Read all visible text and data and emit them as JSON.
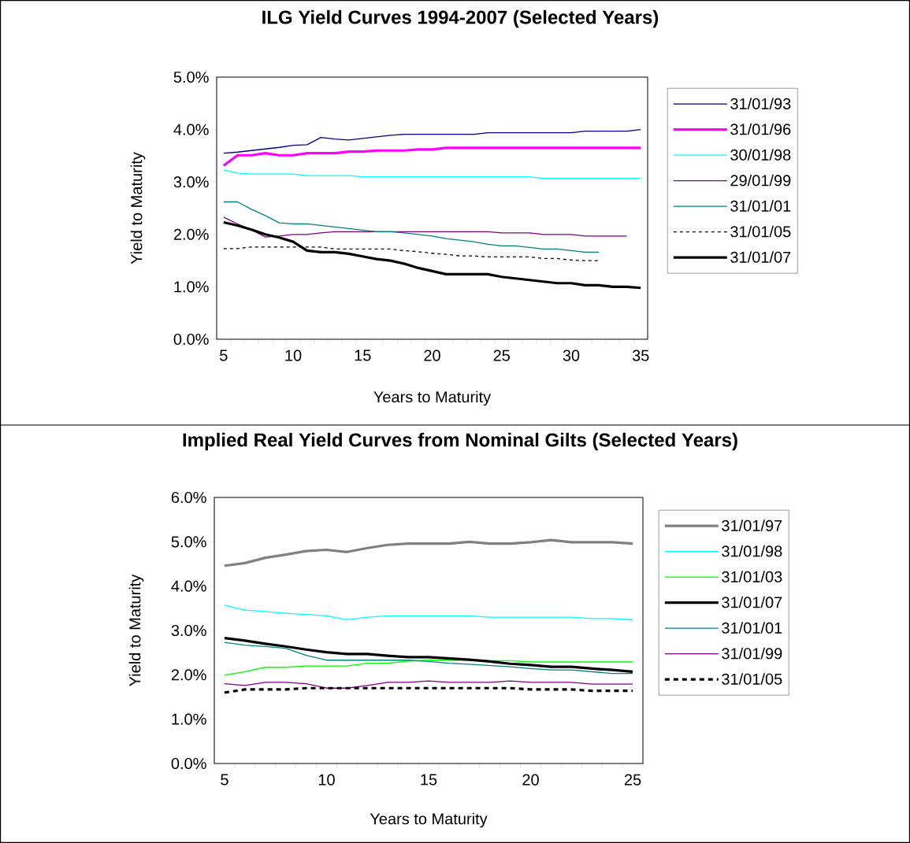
{
  "chart_data": [
    {
      "type": "line",
      "title": "ILG Yield Curves 1994-2007 (Selected Years)",
      "xlabel": "Years to Maturity",
      "ylabel": "Yield to Maturity",
      "x": [
        5,
        6,
        7,
        8,
        9,
        10,
        11,
        12,
        13,
        14,
        15,
        16,
        17,
        18,
        19,
        20,
        21,
        22,
        23,
        24,
        25,
        26,
        27,
        28,
        29,
        30,
        31,
        32,
        33,
        34,
        35
      ],
      "xlim": [
        4.5,
        35.5
      ],
      "xticks": [
        5,
        10,
        15,
        20,
        25,
        30,
        35
      ],
      "ylim": [
        0,
        5
      ],
      "yticks": [
        {
          "value": 0,
          "label": "0.0%"
        },
        {
          "value": 1,
          "label": "1.0%"
        },
        {
          "value": 2,
          "label": "2.0%"
        },
        {
          "value": 3,
          "label": "3.0%"
        },
        {
          "value": 4,
          "label": "4.0%"
        },
        {
          "value": 5,
          "label": "5.0%"
        }
      ],
      "legend": "right",
      "grid": false,
      "series": [
        {
          "name": "31/01/93",
          "color": "#000080",
          "values": [
            3.55,
            3.57,
            3.6,
            3.63,
            3.66,
            3.7,
            3.71,
            3.85,
            3.82,
            3.8,
            3.83,
            3.86,
            3.89,
            3.91,
            3.91,
            3.91,
            3.91,
            3.91,
            3.91,
            3.94,
            3.94,
            3.94,
            3.94,
            3.94,
            3.94,
            3.94,
            3.97,
            3.97,
            3.97,
            3.97,
            4.0
          ]
        },
        {
          "name": "31/01/96",
          "color": "#ff00ff",
          "values": [
            3.31,
            3.51,
            3.51,
            3.55,
            3.51,
            3.51,
            3.55,
            3.55,
            3.55,
            3.58,
            3.58,
            3.6,
            3.6,
            3.6,
            3.62,
            3.62,
            3.65,
            3.65,
            3.65,
            3.65,
            3.65,
            3.65,
            3.65,
            3.65,
            3.65,
            3.65,
            3.65,
            3.65,
            3.65,
            3.65,
            3.65
          ]
        },
        {
          "name": "30/01/98",
          "color": "#00ffff",
          "values": [
            3.23,
            3.17,
            3.15,
            3.15,
            3.15,
            3.15,
            3.12,
            3.12,
            3.12,
            3.12,
            3.1,
            3.1,
            3.1,
            3.1,
            3.1,
            3.1,
            3.1,
            3.1,
            3.1,
            3.1,
            3.1,
            3.1,
            3.1,
            3.07,
            3.07,
            3.07,
            3.07,
            3.07,
            3.07,
            3.07,
            3.07
          ]
        },
        {
          "name": "29/01/99",
          "color": "#800080",
          "values": [
            2.33,
            2.2,
            2.09,
            1.95,
            1.97,
            2.0,
            2.0,
            2.03,
            2.05,
            2.05,
            2.05,
            2.05,
            2.05,
            2.05,
            2.05,
            2.05,
            2.05,
            2.05,
            2.05,
            2.05,
            2.03,
            2.03,
            2.03,
            2.0,
            2.0,
            2.0,
            1.97,
            1.97,
            1.97,
            1.97,
            null
          ]
        },
        {
          "name": "31/01/01",
          "color": "#008080",
          "values": [
            2.62,
            2.62,
            2.48,
            2.36,
            2.22,
            2.2,
            2.2,
            2.17,
            2.14,
            2.11,
            2.08,
            2.05,
            2.05,
            2.03,
            2.0,
            1.97,
            1.92,
            1.89,
            1.86,
            1.81,
            1.78,
            1.78,
            1.75,
            1.72,
            1.72,
            1.69,
            1.66,
            1.66,
            null,
            null,
            null
          ]
        },
        {
          "name": "31/01/05",
          "color": "#000000",
          "line_style": "dotted",
          "values": [
            1.73,
            1.73,
            1.76,
            1.76,
            1.76,
            1.76,
            1.76,
            1.76,
            1.72,
            1.72,
            1.72,
            1.72,
            1.72,
            1.69,
            1.67,
            1.64,
            1.62,
            1.59,
            1.59,
            1.57,
            1.57,
            1.57,
            1.57,
            1.54,
            1.54,
            1.51,
            1.5,
            1.5,
            null,
            null,
            null
          ]
        },
        {
          "name": "31/01/07",
          "color": "#000000",
          "values": [
            2.23,
            2.17,
            2.09,
            2.0,
            1.94,
            1.86,
            1.69,
            1.66,
            1.66,
            1.63,
            1.58,
            1.53,
            1.5,
            1.44,
            1.36,
            1.3,
            1.24,
            1.24,
            1.24,
            1.24,
            1.19,
            1.16,
            1.13,
            1.1,
            1.07,
            1.07,
            1.03,
            1.03,
            1.0,
            1.0,
            0.98
          ]
        }
      ]
    },
    {
      "type": "line",
      "title": "Implied Real Yield Curves from Nominal Gilts (Selected Years)",
      "xlabel": "Years to Maturity",
      "ylabel": "Yield to Maturity",
      "x": [
        5,
        6,
        7,
        8,
        9,
        10,
        11,
        12,
        13,
        14,
        15,
        16,
        17,
        18,
        19,
        20,
        21,
        22,
        23,
        24,
        25
      ],
      "xlim": [
        4.5,
        25.5
      ],
      "xticks": [
        5,
        10,
        15,
        20,
        25
      ],
      "ylim": [
        0,
        6
      ],
      "yticks": [
        {
          "value": 0,
          "label": "0.0%"
        },
        {
          "value": 1,
          "label": "1.0%"
        },
        {
          "value": 2,
          "label": "2.0%"
        },
        {
          "value": 3,
          "label": "3.0%"
        },
        {
          "value": 4,
          "label": "4.0%"
        },
        {
          "value": 5,
          "label": "5.0%"
        },
        {
          "value": 6,
          "label": "6.0%"
        }
      ],
      "legend": "right",
      "grid": false,
      "series": [
        {
          "name": "31/01/97",
          "color": "#808080",
          "values": [
            4.46,
            4.52,
            4.64,
            4.71,
            4.79,
            4.82,
            4.77,
            4.86,
            4.93,
            4.96,
            4.96,
            4.96,
            5.0,
            4.96,
            4.96,
            4.99,
            5.04,
            4.99,
            4.99,
            4.99,
            4.96
          ]
        },
        {
          "name": "31/01/98",
          "color": "#00ffff",
          "values": [
            3.57,
            3.46,
            3.43,
            3.39,
            3.36,
            3.33,
            3.24,
            3.3,
            3.33,
            3.33,
            3.33,
            3.33,
            3.33,
            3.3,
            3.3,
            3.3,
            3.3,
            3.3,
            3.27,
            3.27,
            3.24
          ]
        },
        {
          "name": "31/01/03",
          "color": "#00ff00",
          "values": [
            1.99,
            2.07,
            2.17,
            2.17,
            2.2,
            2.2,
            2.2,
            2.26,
            2.26,
            2.31,
            2.33,
            2.33,
            2.33,
            2.32,
            2.32,
            2.29,
            2.29,
            2.29,
            2.29,
            2.29,
            2.29
          ]
        },
        {
          "name": "31/01/07",
          "color": "#000000",
          "values": [
            2.83,
            2.77,
            2.7,
            2.64,
            2.57,
            2.51,
            2.47,
            2.47,
            2.43,
            2.4,
            2.4,
            2.37,
            2.34,
            2.3,
            2.25,
            2.22,
            2.18,
            2.18,
            2.14,
            2.11,
            2.07
          ]
        },
        {
          "name": "31/01/01",
          "color": "#008080",
          "values": [
            2.73,
            2.67,
            2.64,
            2.6,
            2.44,
            2.33,
            2.33,
            2.33,
            2.33,
            2.33,
            2.3,
            2.26,
            2.24,
            2.21,
            2.18,
            2.14,
            2.11,
            2.11,
            2.07,
            2.03,
            2.03
          ]
        },
        {
          "name": "31/01/99",
          "color": "#800080",
          "values": [
            1.8,
            1.76,
            1.83,
            1.83,
            1.8,
            1.7,
            1.7,
            1.76,
            1.83,
            1.83,
            1.86,
            1.83,
            1.83,
            1.83,
            1.86,
            1.83,
            1.83,
            1.83,
            1.79,
            1.79,
            1.79
          ]
        },
        {
          "name": "31/01/05",
          "color": "#000000",
          "line_style": "dashed",
          "values": [
            1.6,
            1.67,
            1.67,
            1.67,
            1.7,
            1.7,
            1.7,
            1.7,
            1.7,
            1.7,
            1.7,
            1.7,
            1.7,
            1.7,
            1.7,
            1.67,
            1.67,
            1.67,
            1.64,
            1.64,
            1.64
          ]
        }
      ]
    }
  ]
}
